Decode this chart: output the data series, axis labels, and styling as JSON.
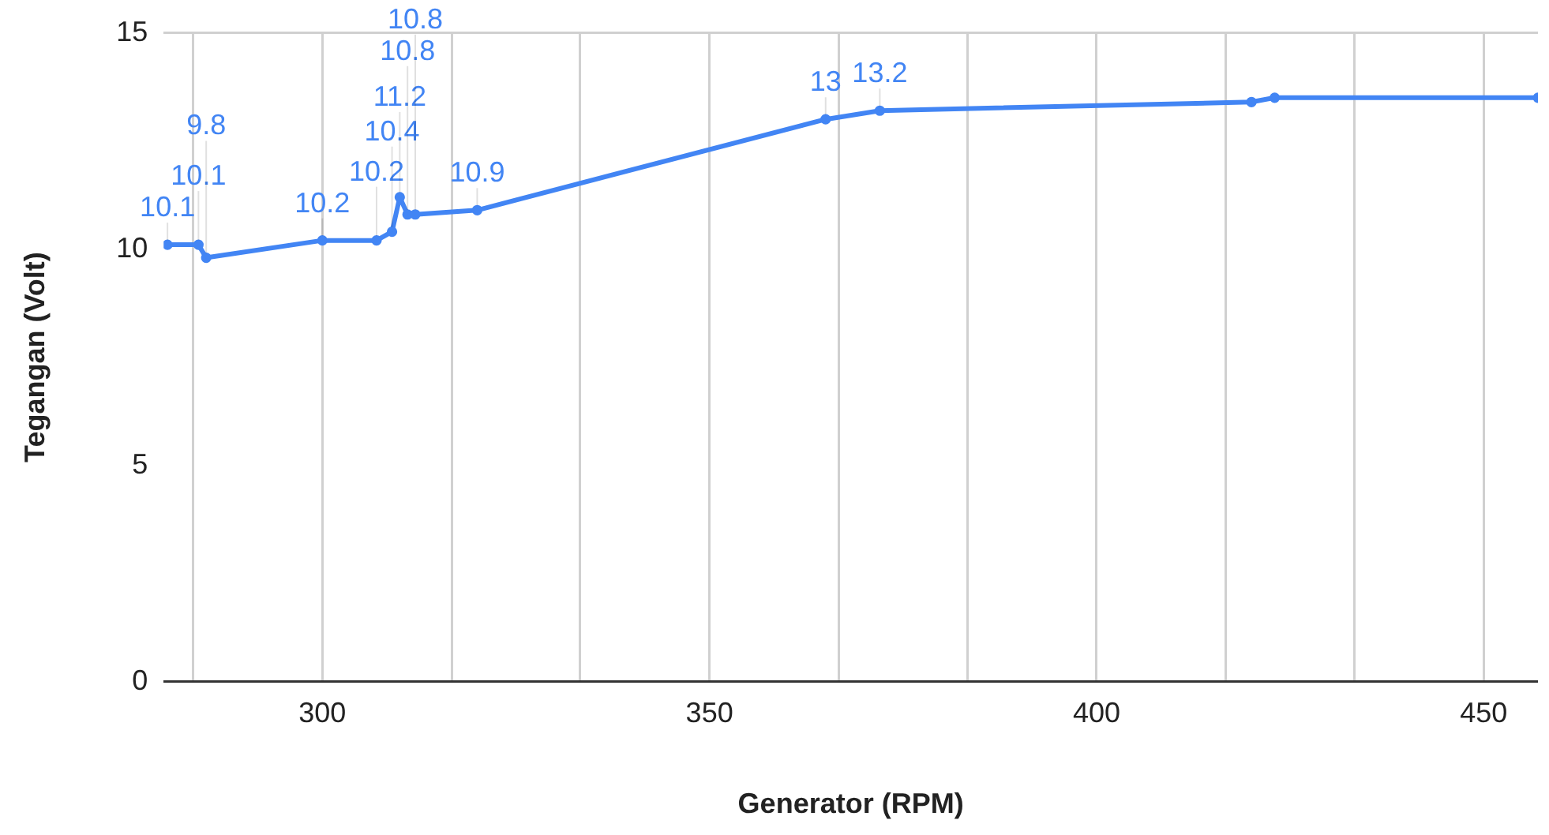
{
  "chart_data": {
    "type": "line",
    "xlabel": "Generator (RPM)",
    "ylabel": "Tegangan (Volt)",
    "x": [
      280,
      284,
      285,
      300,
      307,
      309,
      310,
      311,
      312,
      320,
      365,
      372,
      420,
      423,
      457
    ],
    "series": [
      {
        "color": "#4285f4",
        "values": [
          10.1,
          10.1,
          9.8,
          10.2,
          10.2,
          10.4,
          11.2,
          10.8,
          10.8,
          10.9,
          13,
          13.2,
          13.4,
          13.5,
          13.5
        ],
        "value_labels": [
          "10.1",
          "10.1",
          "9.8",
          "10.2",
          "10.2",
          "10.4",
          "11.2",
          "10.8",
          "10.8",
          "10.9",
          "13",
          "13.2",
          null,
          null,
          null
        ]
      }
    ],
    "xlim": [
      279.5,
      457
    ],
    "xticks": [
      {
        "value": 283.3,
        "label": null
      },
      300,
      {
        "value": 316.7,
        "label": null
      },
      {
        "value": 333.3,
        "label": null
      },
      350,
      {
        "value": 366.7,
        "label": null
      },
      {
        "value": 383.3,
        "label": null
      },
      400,
      {
        "value": 416.7,
        "label": null
      },
      {
        "value": 433.3,
        "label": null
      },
      450
    ],
    "ylim": [
      0,
      15
    ],
    "yticks": [
      0,
      5,
      10,
      15
    ],
    "grid": "x",
    "legend": false,
    "marker": "circle",
    "line_style": "solid"
  }
}
